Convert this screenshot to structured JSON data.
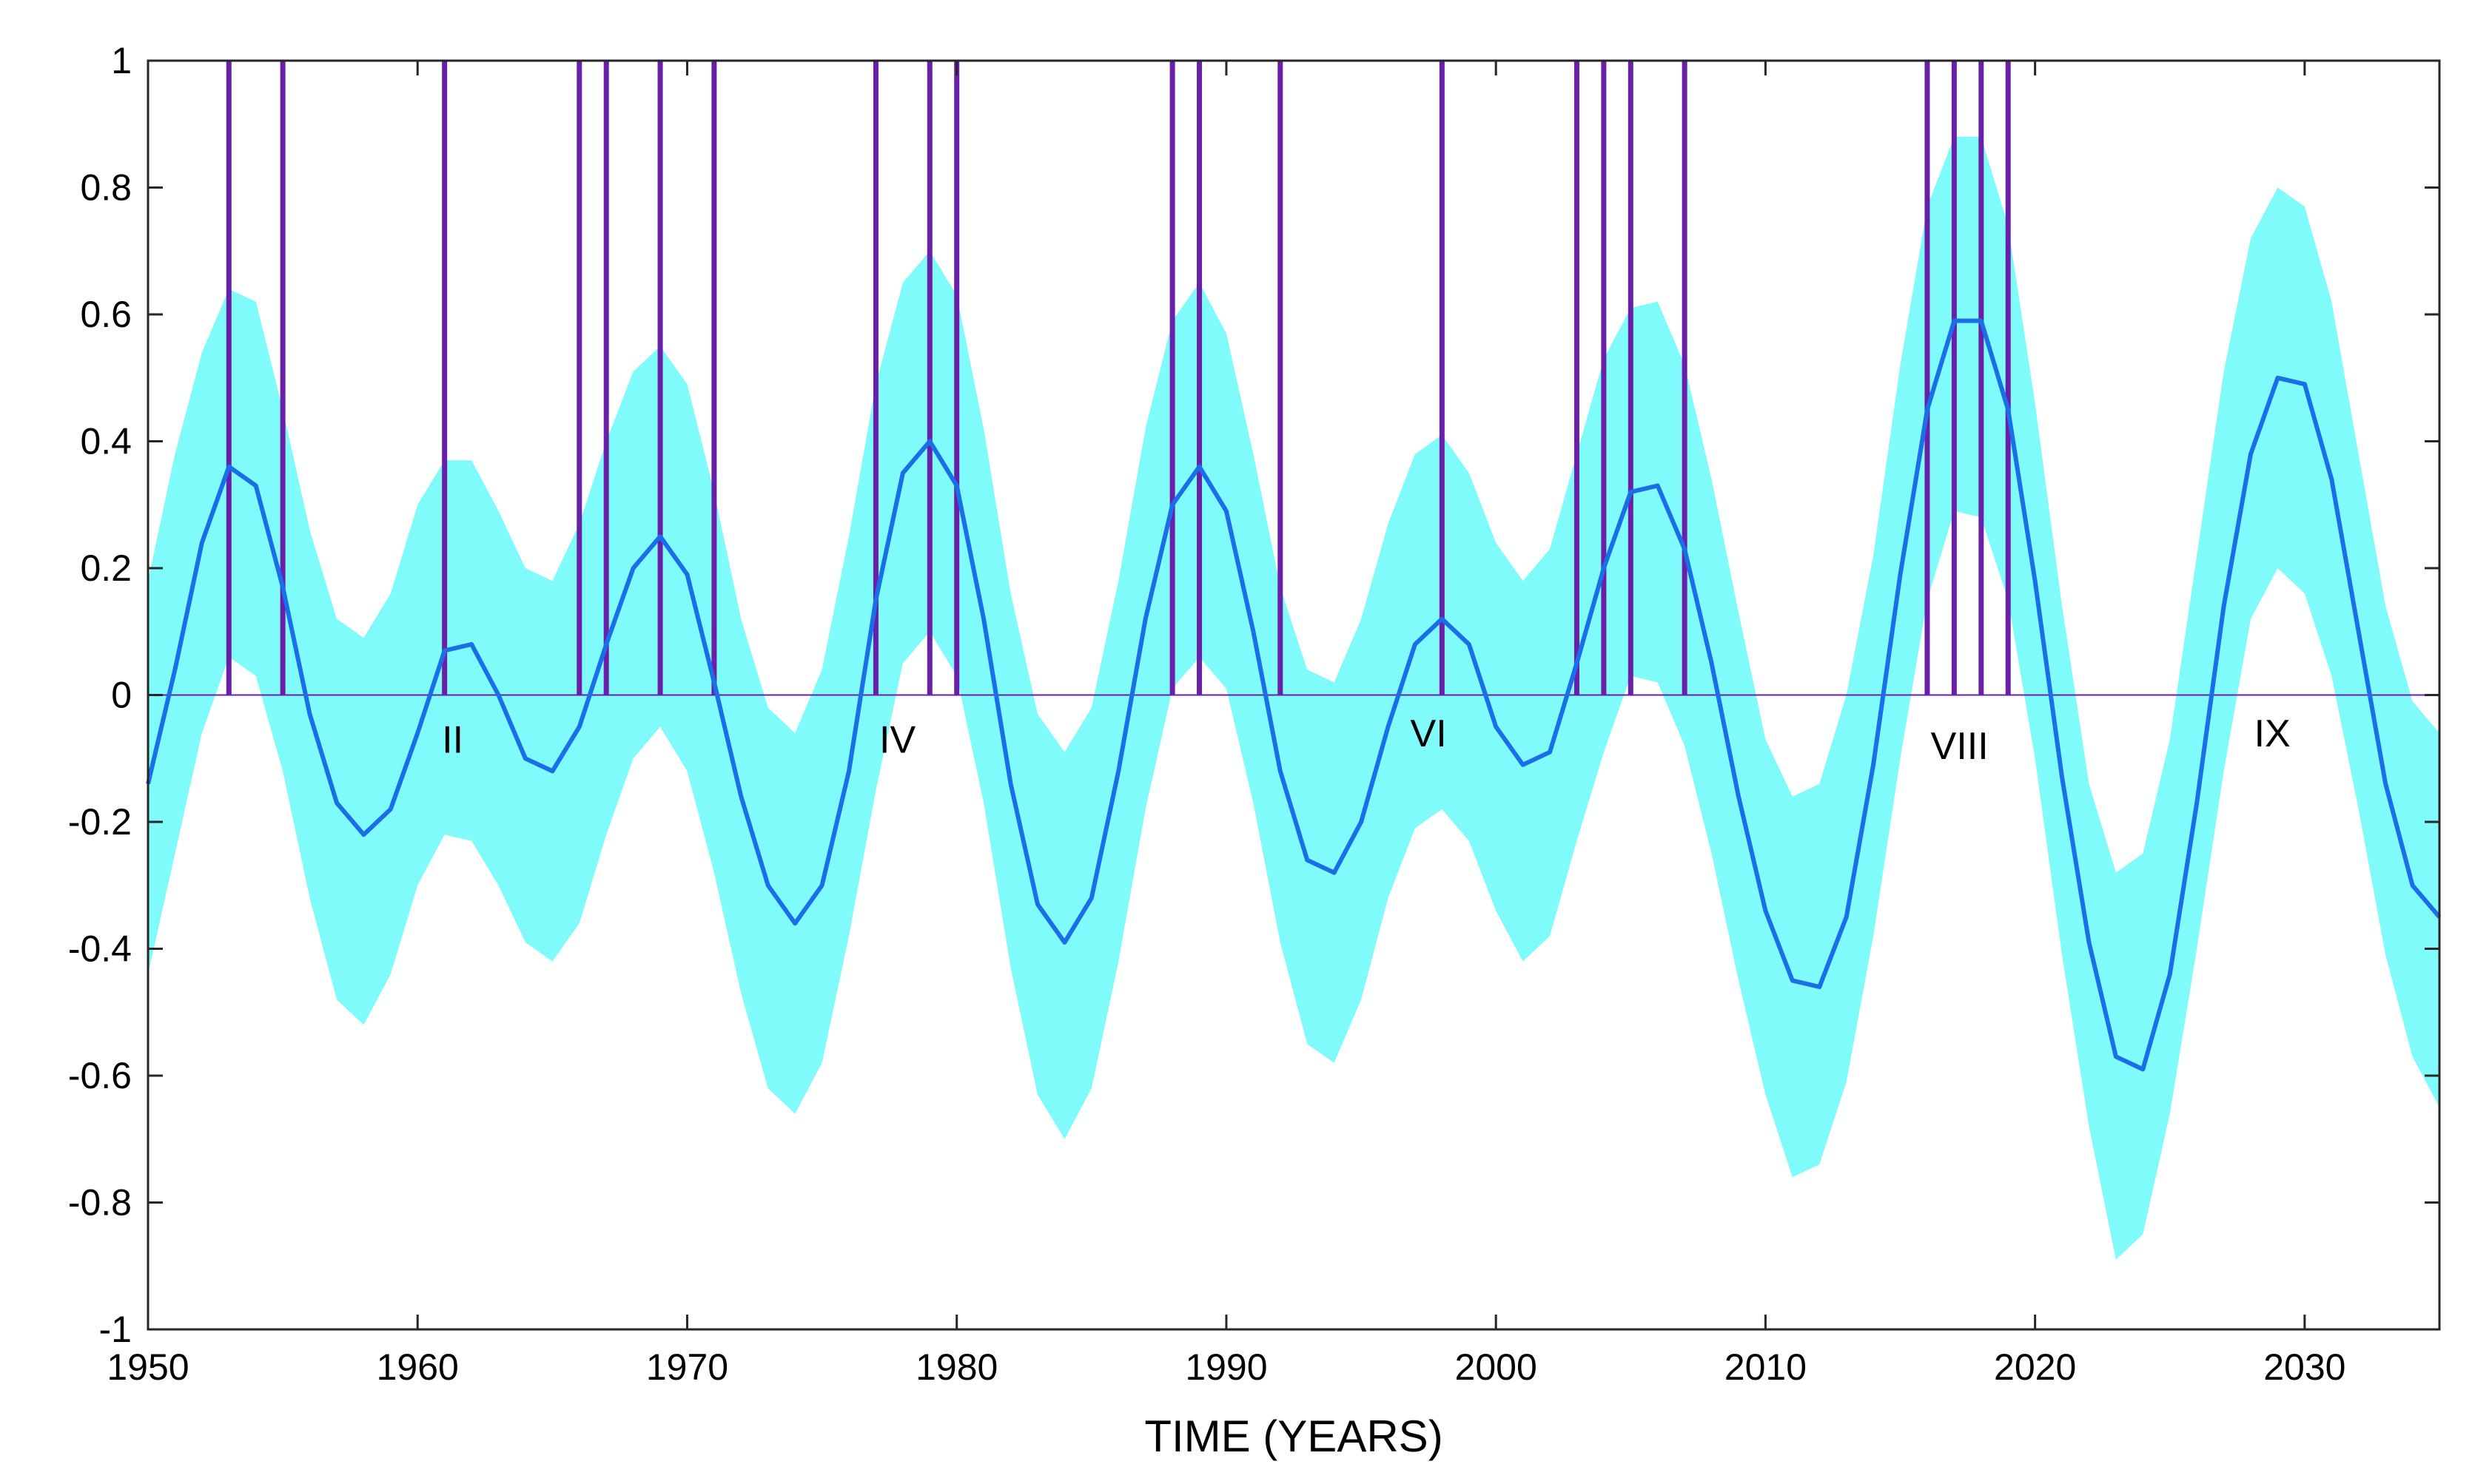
{
  "chart_data": {
    "type": "line",
    "title": "",
    "xlabel": "TIME (YEARS)",
    "ylabel": "",
    "xlim": [
      1950,
      2035
    ],
    "ylim": [
      -1,
      1
    ],
    "x_ticks": [
      1950,
      1960,
      1970,
      1980,
      1990,
      2000,
      2010,
      2020,
      2030
    ],
    "y_ticks": [
      1,
      0.8,
      0.6,
      0.4,
      0.2,
      0,
      -0.2,
      -0.4,
      -0.6,
      -0.8,
      -1
    ],
    "y_tick_labels": [
      "1",
      "0.8",
      "0.6",
      "0.4",
      "0.2",
      "0",
      "-0.2",
      "-0.4",
      "-0.6",
      "-0.8",
      "-1"
    ],
    "colors": {
      "band": "#80FBFB",
      "mean_line": "#1A6FE8",
      "event_bars": "#6A1FA8",
      "zero_line": "#6A1FA8"
    },
    "series": [
      {
        "name": "mean",
        "x": [
          1950,
          1951,
          1952,
          1953,
          1954,
          1955,
          1956,
          1957,
          1958,
          1959,
          1960,
          1961,
          1962,
          1963,
          1964,
          1965,
          1966,
          1967,
          1968,
          1969,
          1970,
          1971,
          1972,
          1973,
          1974,
          1975,
          1976,
          1977,
          1978,
          1979,
          1980,
          1981,
          1982,
          1983,
          1984,
          1985,
          1986,
          1987,
          1988,
          1989,
          1990,
          1991,
          1992,
          1993,
          1994,
          1995,
          1996,
          1997,
          1998,
          1999,
          2000,
          2001,
          2002,
          2003,
          2004,
          2005,
          2006,
          2007,
          2008,
          2009,
          2010,
          2011,
          2012,
          2013,
          2014,
          2015,
          2016,
          2017,
          2018,
          2019,
          2020,
          2021,
          2022,
          2023,
          2024,
          2025,
          2026,
          2027,
          2028,
          2029,
          2030,
          2031,
          2032,
          2033,
          2034,
          2035
        ],
        "values": [
          -0.14,
          0.04,
          0.24,
          0.36,
          0.33,
          0.17,
          -0.03,
          -0.17,
          -0.22,
          -0.18,
          -0.06,
          0.07,
          0.08,
          0.0,
          -0.1,
          -0.12,
          -0.05,
          0.08,
          0.2,
          0.25,
          0.19,
          0.02,
          -0.16,
          -0.3,
          -0.36,
          -0.3,
          -0.12,
          0.15,
          0.35,
          0.4,
          0.33,
          0.12,
          -0.14,
          -0.33,
          -0.39,
          -0.32,
          -0.12,
          0.12,
          0.3,
          0.36,
          0.29,
          0.1,
          -0.12,
          -0.26,
          -0.28,
          -0.2,
          -0.05,
          0.08,
          0.12,
          0.08,
          -0.05,
          -0.11,
          -0.09,
          0.05,
          0.2,
          0.32,
          0.33,
          0.23,
          0.05,
          -0.16,
          -0.34,
          -0.45,
          -0.46,
          -0.35,
          -0.11,
          0.19,
          0.45,
          0.59,
          0.59,
          0.45,
          0.18,
          -0.13,
          -0.39,
          -0.57,
          -0.59,
          -0.44,
          -0.17,
          0.14,
          0.38,
          0.5,
          0.49,
          0.34,
          0.1,
          -0.14,
          -0.3,
          -0.35
        ]
      },
      {
        "name": "band_upper",
        "x": [
          1950,
          1951,
          1952,
          1953,
          1954,
          1955,
          1956,
          1957,
          1958,
          1959,
          1960,
          1961,
          1962,
          1963,
          1964,
          1965,
          1966,
          1967,
          1968,
          1969,
          1970,
          1971,
          1972,
          1973,
          1974,
          1975,
          1976,
          1977,
          1978,
          1979,
          1980,
          1981,
          1982,
          1983,
          1984,
          1985,
          1986,
          1987,
          1988,
          1989,
          1990,
          1991,
          1992,
          1993,
          1994,
          1995,
          1996,
          1997,
          1998,
          1999,
          2000,
          2001,
          2002,
          2003,
          2004,
          2005,
          2006,
          2007,
          2008,
          2009,
          2010,
          2011,
          2012,
          2013,
          2014,
          2015,
          2016,
          2017,
          2018,
          2019,
          2020,
          2021,
          2022,
          2023,
          2024,
          2025,
          2026,
          2027,
          2028,
          2029,
          2030,
          2031,
          2032,
          2033,
          2034,
          2035
        ],
        "values": [
          0.18,
          0.38,
          0.54,
          0.64,
          0.62,
          0.45,
          0.26,
          0.12,
          0.09,
          0.16,
          0.3,
          0.37,
          0.37,
          0.29,
          0.2,
          0.18,
          0.27,
          0.4,
          0.51,
          0.55,
          0.49,
          0.32,
          0.12,
          -0.02,
          -0.06,
          0.04,
          0.25,
          0.49,
          0.65,
          0.7,
          0.63,
          0.42,
          0.16,
          -0.03,
          -0.09,
          -0.02,
          0.18,
          0.42,
          0.59,
          0.65,
          0.57,
          0.38,
          0.17,
          0.04,
          0.02,
          0.12,
          0.27,
          0.38,
          0.41,
          0.35,
          0.24,
          0.18,
          0.23,
          0.38,
          0.53,
          0.61,
          0.62,
          0.52,
          0.34,
          0.13,
          -0.07,
          -0.16,
          -0.14,
          0.0,
          0.22,
          0.52,
          0.77,
          0.88,
          0.88,
          0.74,
          0.46,
          0.14,
          -0.14,
          -0.28,
          -0.25,
          -0.07,
          0.22,
          0.51,
          0.72,
          0.8,
          0.77,
          0.62,
          0.38,
          0.14,
          -0.01,
          -0.06
        ]
      },
      {
        "name": "band_lower",
        "x": [
          1950,
          1951,
          1952,
          1953,
          1954,
          1955,
          1956,
          1957,
          1958,
          1959,
          1960,
          1961,
          1962,
          1963,
          1964,
          1965,
          1966,
          1967,
          1968,
          1969,
          1970,
          1971,
          1972,
          1973,
          1974,
          1975,
          1976,
          1977,
          1978,
          1979,
          1980,
          1981,
          1982,
          1983,
          1984,
          1985,
          1986,
          1987,
          1988,
          1989,
          1990,
          1991,
          1992,
          1993,
          1994,
          1995,
          1996,
          1997,
          1998,
          1999,
          2000,
          2001,
          2002,
          2003,
          2004,
          2005,
          2006,
          2007,
          2008,
          2009,
          2010,
          2011,
          2012,
          2013,
          2014,
          2015,
          2016,
          2017,
          2018,
          2019,
          2020,
          2021,
          2022,
          2023,
          2024,
          2025,
          2026,
          2027,
          2028,
          2029,
          2030,
          2031,
          2032,
          2033,
          2034,
          2035
        ],
        "values": [
          -0.44,
          -0.25,
          -0.06,
          0.06,
          0.03,
          -0.12,
          -0.32,
          -0.48,
          -0.52,
          -0.44,
          -0.3,
          -0.22,
          -0.23,
          -0.3,
          -0.39,
          -0.42,
          -0.36,
          -0.22,
          -0.1,
          -0.05,
          -0.12,
          -0.28,
          -0.47,
          -0.62,
          -0.66,
          -0.58,
          -0.38,
          -0.15,
          0.05,
          0.1,
          0.03,
          -0.17,
          -0.43,
          -0.63,
          -0.7,
          -0.62,
          -0.42,
          -0.18,
          0.01,
          0.06,
          0.01,
          -0.17,
          -0.39,
          -0.55,
          -0.58,
          -0.48,
          -0.32,
          -0.21,
          -0.18,
          -0.23,
          -0.34,
          -0.42,
          -0.38,
          -0.23,
          -0.09,
          0.03,
          0.02,
          -0.08,
          -0.25,
          -0.45,
          -0.63,
          -0.76,
          -0.74,
          -0.61,
          -0.38,
          -0.1,
          0.15,
          0.29,
          0.28,
          0.15,
          -0.1,
          -0.41,
          -0.68,
          -0.89,
          -0.85,
          -0.66,
          -0.4,
          -0.12,
          0.12,
          0.2,
          0.16,
          0.03,
          -0.18,
          -0.41,
          -0.57,
          -0.65
        ]
      }
    ],
    "event_years": [
      1953,
      1955,
      1961,
      1966,
      1967,
      1969,
      1971,
      1977,
      1979,
      1980,
      1988,
      1989,
      1992,
      1998,
      2003,
      2004,
      2005,
      2007,
      2016,
      2017,
      2018,
      2019
    ],
    "event_bar_range": [
      0,
      1
    ],
    "annotations": [
      {
        "text": "II",
        "x": 1961.3,
        "y": -0.07
      },
      {
        "text": "IV",
        "x": 1977.8,
        "y": -0.07
      },
      {
        "text": "VI",
        "x": 1997.5,
        "y": -0.06
      },
      {
        "text": "VIII",
        "x": 2017.2,
        "y": -0.08
      },
      {
        "text": "IX",
        "x": 2028.8,
        "y": -0.06
      }
    ]
  }
}
